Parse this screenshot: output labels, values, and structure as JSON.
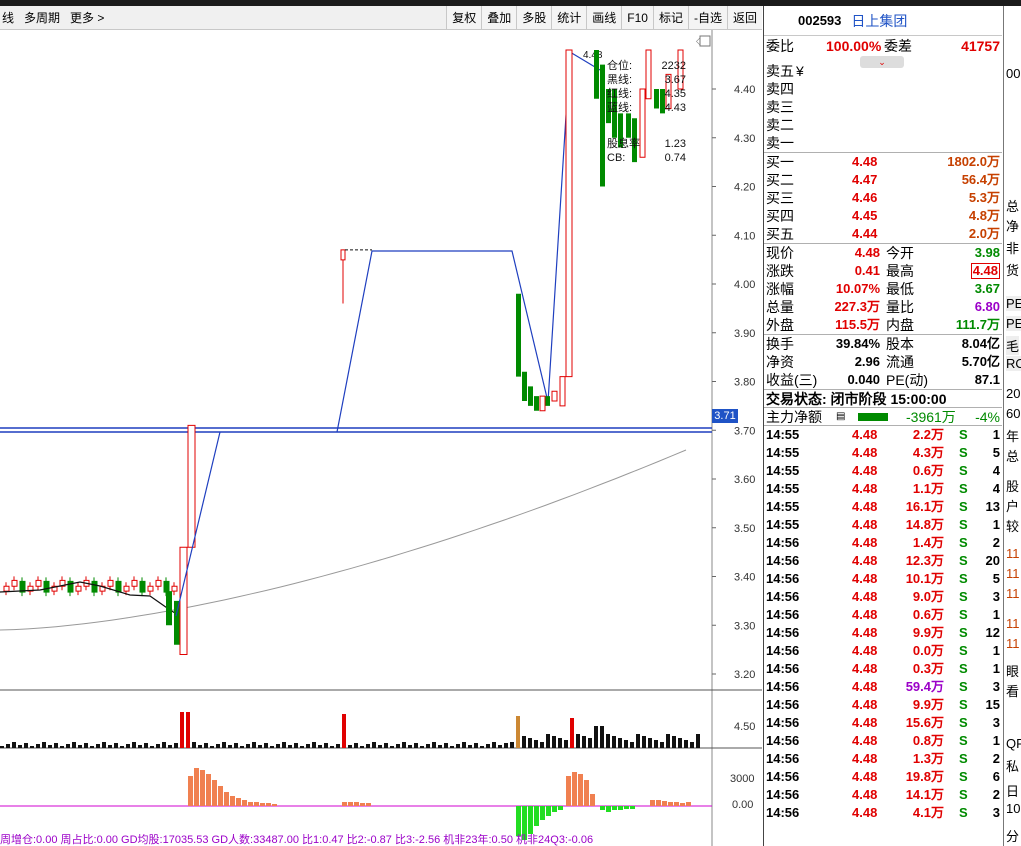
{
  "toolbar": {
    "left_items": [
      "线",
      "多周期",
      "更多 >"
    ],
    "right_buttons": [
      "复权",
      "叠加",
      "多股",
      "统计",
      "画线",
      "F10",
      "标记",
      "-自选",
      "返回"
    ]
  },
  "stock": {
    "code": "002593",
    "name": "日上集团"
  },
  "weibi": {
    "label1": "委比",
    "value1": "100.00%",
    "label2": "委差",
    "value2": "41757"
  },
  "asks": [
    {
      "label": "卖五",
      "extra": "¥"
    },
    {
      "label": "卖四"
    },
    {
      "label": "卖三"
    },
    {
      "label": "卖二"
    },
    {
      "label": "卖一"
    }
  ],
  "bids": [
    {
      "label": "买一",
      "price": "4.48",
      "vol": "1802.0万"
    },
    {
      "label": "买二",
      "price": "4.47",
      "vol": "56.4万"
    },
    {
      "label": "买三",
      "price": "4.46",
      "vol": "5.3万"
    },
    {
      "label": "买四",
      "price": "4.45",
      "vol": "4.8万"
    },
    {
      "label": "买五",
      "price": "4.44",
      "vol": "2.0万"
    }
  ],
  "quote_rows": [
    {
      "l1": "现价",
      "v1": "4.48",
      "l2": "今开",
      "v2": "3.98",
      "c1": "red",
      "c2": "green"
    },
    {
      "l1": "涨跌",
      "v1": "0.41",
      "l2": "最高",
      "v2": "4.48",
      "c1": "red",
      "c2": "red"
    },
    {
      "l1": "涨幅",
      "v1": "10.07%",
      "l2": "最低",
      "v2": "3.67",
      "c1": "red",
      "c2": "green"
    },
    {
      "l1": "总量",
      "v1": "227.3万",
      "l2": "量比",
      "v2": "6.80",
      "c1": "red",
      "c2": "purple"
    },
    {
      "l1": "外盘",
      "v1": "115.5万",
      "l2": "内盘",
      "v2": "111.7万",
      "c1": "red",
      "c2": "green"
    }
  ],
  "fund_rows": [
    {
      "l1": "换手",
      "v1": "39.84%",
      "l2": "股本",
      "v2": "8.04亿"
    },
    {
      "l1": "净资",
      "v1": "2.96",
      "l2": "流通",
      "v2": "5.70亿"
    },
    {
      "l1": "收益(三)",
      "v1": "0.040",
      "l2": "PE(动)",
      "v2": "87.1"
    }
  ],
  "trade_status": "交易状态: 闭市阶段 15:00:00",
  "main_net": {
    "label": "主力净额",
    "value": "-3961万",
    "pct": "-4%"
  },
  "ticks": [
    [
      "14:55",
      "4.48",
      "2.2万",
      "S",
      "1"
    ],
    [
      "14:55",
      "4.48",
      "4.3万",
      "S",
      "5"
    ],
    [
      "14:55",
      "4.48",
      "0.6万",
      "S",
      "4"
    ],
    [
      "14:55",
      "4.48",
      "1.1万",
      "S",
      "4"
    ],
    [
      "14:55",
      "4.48",
      "16.1万",
      "S",
      "13"
    ],
    [
      "14:55",
      "4.48",
      "14.8万",
      "S",
      "1"
    ],
    [
      "14:56",
      "4.48",
      "1.4万",
      "S",
      "2"
    ],
    [
      "14:56",
      "4.48",
      "12.3万",
      "S",
      "20"
    ],
    [
      "14:56",
      "4.48",
      "10.1万",
      "S",
      "5"
    ],
    [
      "14:56",
      "4.48",
      "9.0万",
      "S",
      "3"
    ],
    [
      "14:56",
      "4.48",
      "0.6万",
      "S",
      "1"
    ],
    [
      "14:56",
      "4.48",
      "9.9万",
      "S",
      "12"
    ],
    [
      "14:56",
      "4.48",
      "0.0万",
      "S",
      "1"
    ],
    [
      "14:56",
      "4.48",
      "0.3万",
      "S",
      "1"
    ],
    [
      "14:56",
      "4.48",
      "59.4万",
      "S",
      "3"
    ],
    [
      "14:56",
      "4.48",
      "9.9万",
      "S",
      "15"
    ],
    [
      "14:56",
      "4.48",
      "15.6万",
      "S",
      "3"
    ],
    [
      "14:56",
      "4.48",
      "0.8万",
      "S",
      "1"
    ],
    [
      "14:56",
      "4.48",
      "1.3万",
      "S",
      "2"
    ],
    [
      "14:56",
      "4.48",
      "19.8万",
      "S",
      "6"
    ],
    [
      "14:56",
      "4.48",
      "14.1万",
      "S",
      "2"
    ],
    [
      "14:56",
      "4.48",
      "4.1万",
      "S",
      "3"
    ]
  ],
  "price_axis": [
    "4.40",
    "4.30",
    "4.20",
    "4.10",
    "4.00",
    "3.90",
    "3.80",
    "3.70",
    "3.60",
    "3.50",
    "3.40",
    "3.30",
    "3.20"
  ],
  "current_price_tag": "3.71",
  "vol_axis": [
    "4.50"
  ],
  "ind_axis": [
    "3000",
    "0.00"
  ],
  "overlay": [
    {
      "label": "仓位:",
      "value": "2232"
    },
    {
      "label": "黑线:",
      "value": "3.67"
    },
    {
      "label": "红线:",
      "value": "4.35"
    },
    {
      "label": "蓝线:",
      "value": "4.43"
    },
    {
      "label": "股息率",
      "value": "1.23"
    },
    {
      "label": "CB:",
      "value": "0.74"
    }
  ],
  "peak_label": "4.48",
  "bottom_bar": "周增仓:0.00  周占比:0.00  GD均股:17035.53  GD人数:33487.00  比1:0.47  比2:-0.87  比3:-2.56  机非23年:0.50  机非24Q3:-0.06",
  "side_texts": [
    "00",
    "总",
    "净",
    "非",
    "货",
    "PE",
    "PE",
    "毛",
    "RO",
    "20",
    "60",
    "年",
    "总",
    "股",
    "户",
    "较",
    "11",
    "11",
    "11",
    "11",
    "11",
    "眼",
    "看",
    "",
    "QF",
    "私",
    "日",
    "10",
    "分"
  ],
  "colors": {
    "up": "#e00000",
    "down": "#008a00",
    "blue": "#1f3fbf",
    "orange": "#f08050"
  }
}
